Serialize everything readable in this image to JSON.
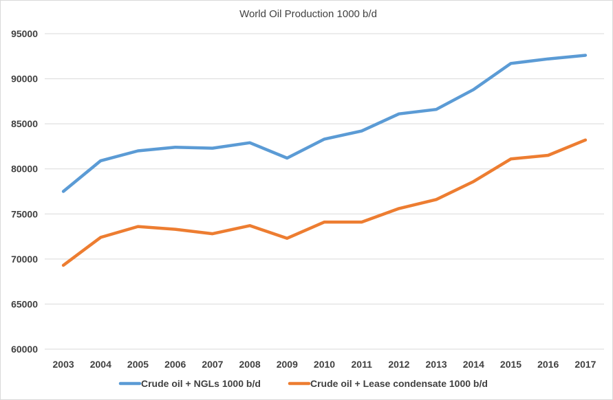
{
  "chart_data": {
    "type": "line",
    "title": "World Oil Production 1000 b/d",
    "xlabel": "",
    "ylabel": "",
    "x": [
      "2003",
      "2004",
      "2005",
      "2006",
      "2007",
      "2008",
      "2009",
      "2010",
      "2011",
      "2012",
      "2013",
      "2014",
      "2015",
      "2016",
      "2017"
    ],
    "yticks": [
      "60000",
      "65000",
      "70000",
      "75000",
      "80000",
      "85000",
      "90000",
      "95000"
    ],
    "ylim": [
      60000,
      95000
    ],
    "grid": true,
    "legend_position": "bottom",
    "series": [
      {
        "name": "Crude oil + NGLs 1000 b/d",
        "color": "#5b9bd5",
        "values": [
          77500,
          80900,
          82000,
          82400,
          82300,
          82900,
          81200,
          83300,
          84200,
          86100,
          86600,
          88800,
          91700,
          92200,
          92600
        ]
      },
      {
        "name": "Crude oil + Lease condensate 1000 b/d",
        "color": "#ed7d31",
        "values": [
          69300,
          72400,
          73600,
          73300,
          72800,
          73700,
          72300,
          74100,
          74100,
          75600,
          76600,
          78600,
          81100,
          81500,
          83200
        ]
      }
    ]
  }
}
